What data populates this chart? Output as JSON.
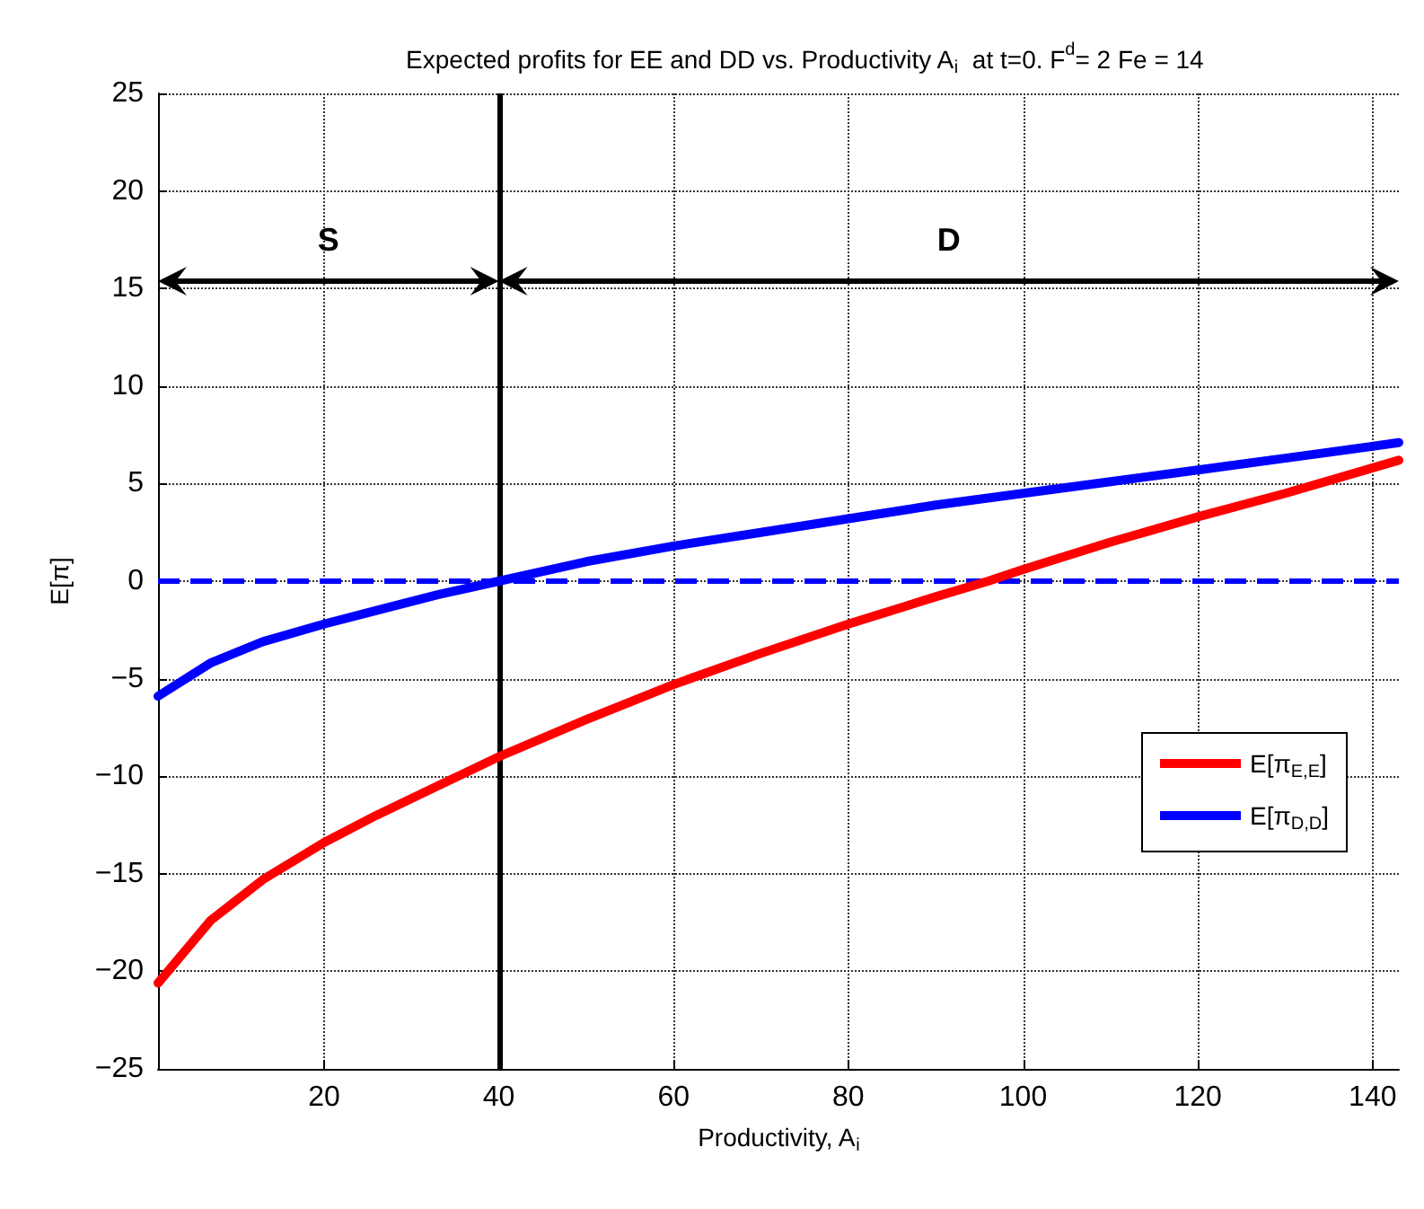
{
  "chart_data": {
    "type": "line",
    "title": "Expected profits for EE and DD vs. Productivity A$_{i}$  at t=0. F$^{d}$= 2 Fe = 14",
    "xlabel": "Productivity, A$_{i}$",
    "ylabel": "E[π]",
    "xlim": [
      1,
      143
    ],
    "xticks": [
      20,
      40,
      60,
      80,
      100,
      120,
      140
    ],
    "ylim": [
      -25,
      25
    ],
    "yticks": [
      -25,
      -20,
      -15,
      -10,
      -5,
      0,
      5,
      10,
      15,
      20,
      25
    ],
    "series": [
      {
        "name": "E[π$_{E,E}$]",
        "color": "#ff0000",
        "x": [
          1,
          7,
          13,
          20,
          26,
          33,
          40,
          50,
          60,
          70,
          80,
          90,
          96,
          100,
          110,
          120,
          130,
          143
        ],
        "values": [
          -20.6,
          -17.4,
          -15.3,
          -13.4,
          -12,
          -10.5,
          -9,
          -7.1,
          -5.3,
          -3.7,
          -2.2,
          -0.8,
          0,
          0.6,
          2,
          3.3,
          4.5,
          6.2
        ]
      },
      {
        "name": "E[π$_{D,D}$]",
        "color": "#0000ff",
        "x": [
          1,
          7,
          13,
          20,
          26,
          33,
          40,
          50,
          60,
          70,
          80,
          90,
          100,
          110,
          120,
          130,
          143
        ],
        "values": [
          -5.9,
          -4.2,
          -3.1,
          -2.2,
          -1.5,
          -0.7,
          0,
          1,
          1.8,
          2.5,
          3.2,
          3.9,
          4.5,
          5.1,
          5.7,
          6.3,
          7.1
        ]
      }
    ],
    "ref_lines": [
      {
        "axis": "y",
        "value": 0,
        "color": "#0000ff",
        "line_style": "dashed"
      },
      {
        "axis": "x",
        "value": 40,
        "color": "#000000",
        "line_style": "solid"
      }
    ],
    "annotations": [
      "S",
      "D"
    ],
    "grid": true,
    "legend": "right",
    "marker": "none",
    "line_style": "solid"
  }
}
